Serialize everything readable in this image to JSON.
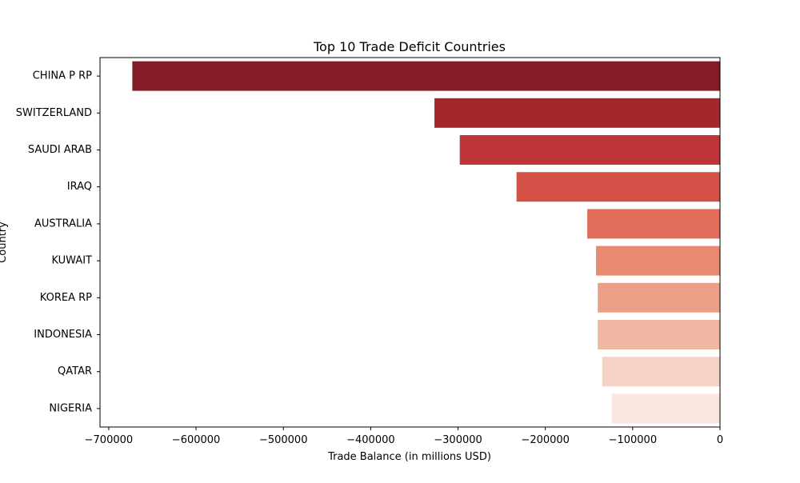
{
  "chart_data": {
    "type": "bar",
    "orientation": "horizontal",
    "title": "Top 10 Trade Deficit Countries",
    "xlabel": "Trade Balance (in millions USD)",
    "ylabel": "Country",
    "xlim": [
      -710000,
      0
    ],
    "xticks": [
      -700000,
      -600000,
      -500000,
      -400000,
      -300000,
      -200000,
      -100000,
      0
    ],
    "xtick_labels": [
      "−700000",
      "−600000",
      "−500000",
      "−400000",
      "−300000",
      "−200000",
      "−100000",
      "0"
    ],
    "grid": false,
    "categories": [
      "CHINA P RP",
      "SWITZERLAND",
      "SAUDI ARAB",
      "IRAQ",
      "AUSTRALIA",
      "KUWAIT",
      "KOREA RP",
      "INDONESIA",
      "QATAR",
      "NIGERIA"
    ],
    "values": [
      -673000,
      -327000,
      -298000,
      -233000,
      -152000,
      -142000,
      -140000,
      -140000,
      -135000,
      -124000
    ],
    "colors": [
      "#841c25",
      "#a3282e",
      "#bd3439",
      "#d35046",
      "#e26d5a",
      "#e88a71",
      "#eb9f87",
      "#f0b7a3",
      "#f4d3c6",
      "#f8e6df"
    ]
  }
}
